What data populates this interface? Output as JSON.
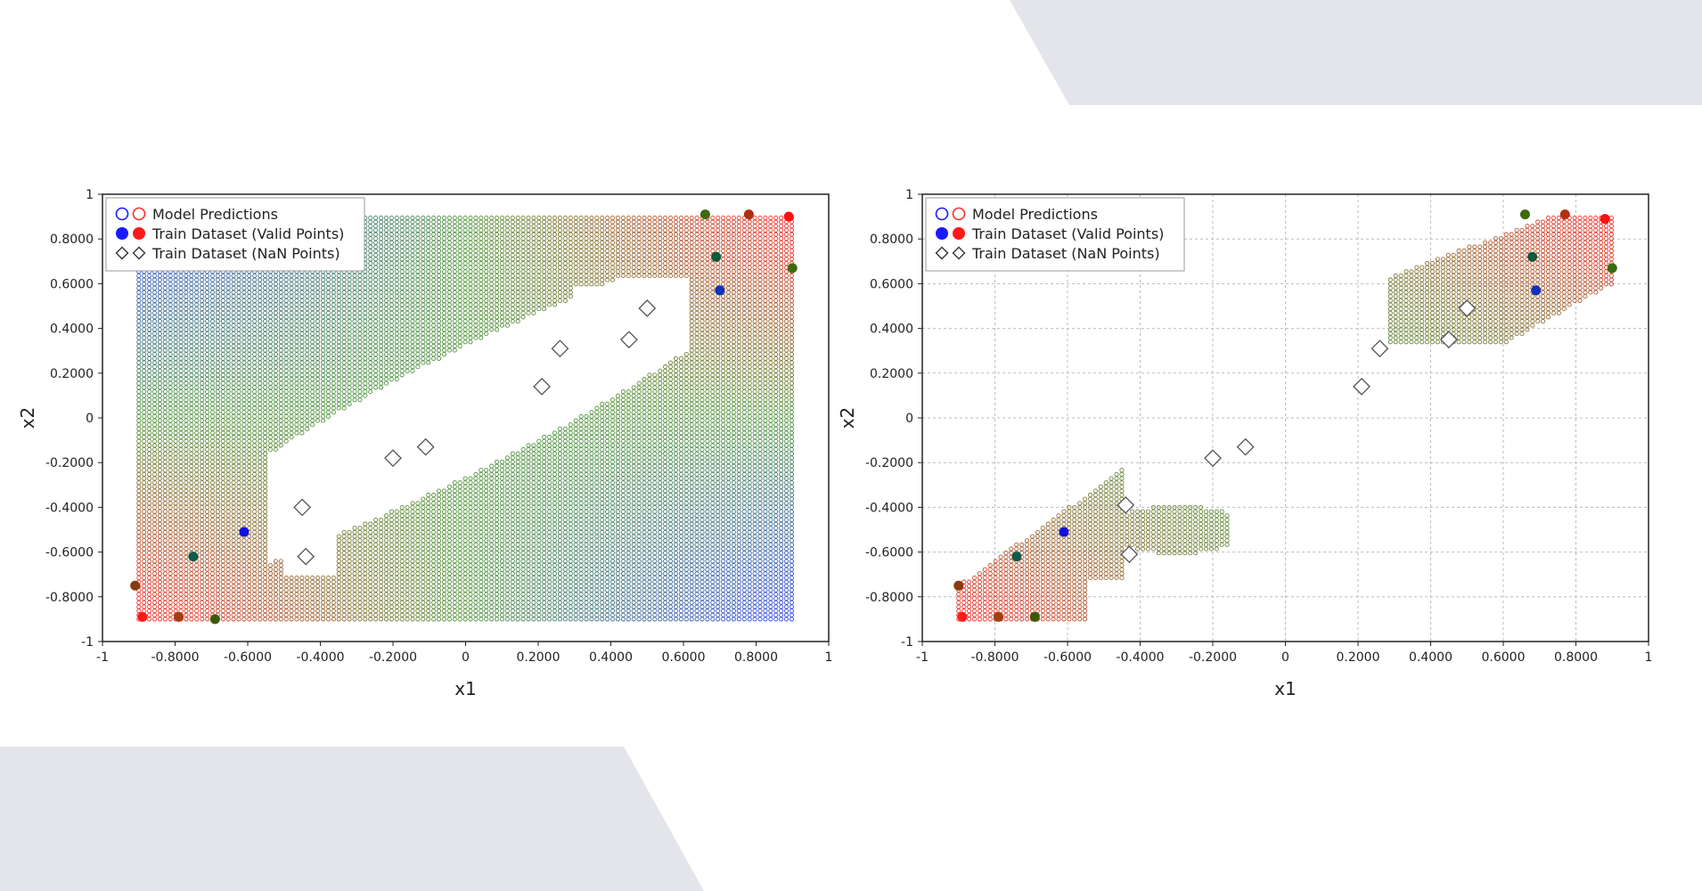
{
  "chart_data": [
    {
      "type": "scatter",
      "title": "",
      "xlabel": "x1",
      "ylabel": "x2",
      "xlim": [
        -1,
        1
      ],
      "ylim": [
        -1,
        1
      ],
      "grid": false,
      "legend_position": "top-left",
      "x_ticks": [
        "-1",
        "-0.8000",
        "-0.6000",
        "-0.4000",
        "-0.2000",
        "0",
        "0.2000",
        "0.4000",
        "0.6000",
        "0.8000",
        "1"
      ],
      "y_ticks": [
        "-1",
        "-0.8000",
        "-0.6000",
        "-0.4000",
        "-0.2000",
        "0",
        "0.2000",
        "0.4000",
        "0.6000",
        "0.8000",
        "1"
      ],
      "x_tick_values": [
        -1,
        -0.8,
        -0.6,
        -0.4,
        -0.2,
        0,
        0.2,
        0.4,
        0.6,
        0.8,
        1
      ],
      "y_tick_values": [
        -1,
        -0.8,
        -0.6,
        -0.4,
        -0.2,
        0,
        0.2,
        0.4,
        0.6,
        0.8,
        1
      ],
      "legend": [
        "Model Predictions",
        "Train Dataset (Valid Points)",
        "Train Dataset (NaN Points)"
      ],
      "series": [
        {
          "name": "Model Predictions",
          "marker": "hollow-circle",
          "region": "grid over [-0.9,0.9]x[-0.9,0.9] excluding a diagonal NaN-shaped hole"
        },
        {
          "name": "Train Dataset (Valid Points)",
          "marker": "filled-circle",
          "points": [
            {
              "x": -0.91,
              "y": -0.75,
              "color": "#8b3a10"
            },
            {
              "x": -0.89,
              "y": -0.89,
              "color": "#ff1a1a"
            },
            {
              "x": -0.79,
              "y": -0.89,
              "color": "#a04010"
            },
            {
              "x": -0.75,
              "y": -0.62,
              "color": "#0f5a4a"
            },
            {
              "x": -0.69,
              "y": -0.9,
              "color": "#3c5a08"
            },
            {
              "x": -0.61,
              "y": -0.51,
              "color": "#1010e0"
            },
            {
              "x": 0.66,
              "y": 0.91,
              "color": "#3c6a10"
            },
            {
              "x": 0.69,
              "y": 0.72,
              "color": "#0f5a3a"
            },
            {
              "x": 0.7,
              "y": 0.57,
              "color": "#1030c0"
            },
            {
              "x": 0.78,
              "y": 0.91,
              "color": "#b03010"
            },
            {
              "x": 0.89,
              "y": 0.9,
              "color": "#ff1010"
            },
            {
              "x": 0.9,
              "y": 0.67,
              "color": "#3a6a10"
            }
          ]
        },
        {
          "name": "Train Dataset (NaN Points)",
          "marker": "hollow-diamond",
          "points": [
            {
              "x": -0.45,
              "y": -0.4
            },
            {
              "x": -0.44,
              "y": -0.62
            },
            {
              "x": -0.2,
              "y": -0.18
            },
            {
              "x": -0.11,
              "y": -0.13
            },
            {
              "x": 0.21,
              "y": 0.14
            },
            {
              "x": 0.26,
              "y": 0.31
            },
            {
              "x": 0.45,
              "y": 0.35
            },
            {
              "x": 0.5,
              "y": 0.49
            }
          ]
        }
      ]
    },
    {
      "type": "scatter",
      "title": "",
      "xlabel": "x1",
      "ylabel": "x2",
      "xlim": [
        -1,
        1
      ],
      "ylim": [
        -1,
        1
      ],
      "grid": true,
      "legend_position": "top-left",
      "x_ticks": [
        "-1",
        "-0.8000",
        "-0.6000",
        "-0.4000",
        "-0.2000",
        "0",
        "0.2000",
        "0.4000",
        "0.6000",
        "0.8000",
        "1"
      ],
      "y_ticks": [
        "-1",
        "-0.8000",
        "-0.6000",
        "-0.4000",
        "-0.2000",
        "0",
        "0.2000",
        "0.4000",
        "0.6000",
        "0.8000",
        "1"
      ],
      "x_tick_values": [
        -1,
        -0.8,
        -0.6,
        -0.4,
        -0.2,
        0,
        0.2,
        0.4,
        0.6,
        0.8,
        1
      ],
      "y_tick_values": [
        -1,
        -0.8,
        -0.6,
        -0.4,
        -0.2,
        0,
        0.2,
        0.4,
        0.6,
        0.8,
        1
      ],
      "legend": [
        "Model Predictions",
        "Train Dataset (Valid Points)",
        "Train Dataset (NaN Points)"
      ],
      "series": [
        {
          "name": "Model Predictions",
          "marker": "hollow-circle",
          "region": "two clusters: lower-left around (-0.7,-0.6) and upper-right around (0.7,0.7)"
        },
        {
          "name": "Train Dataset (Valid Points)",
          "marker": "filled-circle",
          "points": [
            {
              "x": -0.9,
              "y": -0.75,
              "color": "#8b3a10"
            },
            {
              "x": -0.89,
              "y": -0.89,
              "color": "#ff1a1a"
            },
            {
              "x": -0.79,
              "y": -0.89,
              "color": "#a04010"
            },
            {
              "x": -0.74,
              "y": -0.62,
              "color": "#0f5a4a"
            },
            {
              "x": -0.69,
              "y": -0.89,
              "color": "#3c5a08"
            },
            {
              "x": -0.61,
              "y": -0.51,
              "color": "#1010e0"
            },
            {
              "x": 0.66,
              "y": 0.91,
              "color": "#3c6a10"
            },
            {
              "x": 0.68,
              "y": 0.72,
              "color": "#0f5a3a"
            },
            {
              "x": 0.69,
              "y": 0.57,
              "color": "#1030c0"
            },
            {
              "x": 0.77,
              "y": 0.91,
              "color": "#b03010"
            },
            {
              "x": 0.88,
              "y": 0.89,
              "color": "#ff1010"
            },
            {
              "x": 0.9,
              "y": 0.67,
              "color": "#3a6a10"
            }
          ]
        },
        {
          "name": "Train Dataset (NaN Points)",
          "marker": "hollow-diamond",
          "points": [
            {
              "x": -0.44,
              "y": -0.39
            },
            {
              "x": -0.43,
              "y": -0.61
            },
            {
              "x": -0.2,
              "y": -0.18
            },
            {
              "x": -0.11,
              "y": -0.13
            },
            {
              "x": 0.21,
              "y": 0.14
            },
            {
              "x": 0.26,
              "y": 0.31
            },
            {
              "x": 0.45,
              "y": 0.35
            },
            {
              "x": 0.5,
              "y": 0.49
            }
          ]
        }
      ]
    }
  ]
}
